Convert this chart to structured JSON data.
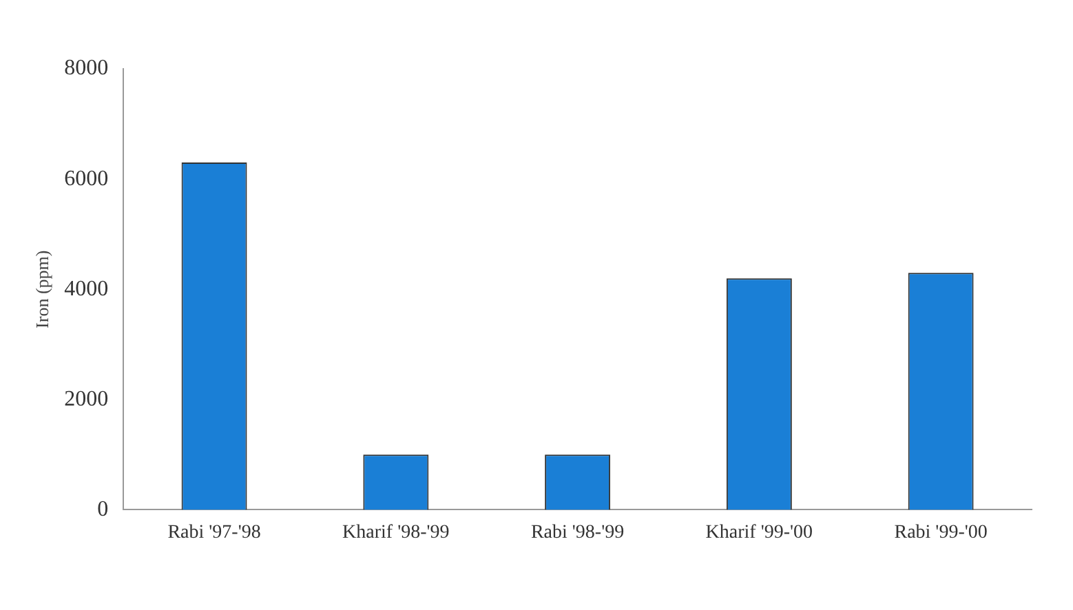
{
  "chart_data": {
    "type": "bar",
    "ylabel": "Iron (ppm)",
    "categories": [
      "Rabi '97-'98",
      "Kharif '98-'99",
      "Rabi '98-'99",
      "Kharif '99-'00",
      "Rabi '99-'00"
    ],
    "values": [
      6300,
      1000,
      1000,
      4200,
      4300
    ],
    "color": "#1a7fd6",
    "ylim": [
      0,
      8000
    ],
    "yticks": [
      0,
      2000,
      4000,
      6000,
      8000
    ],
    "grid": false,
    "legend": false
  }
}
